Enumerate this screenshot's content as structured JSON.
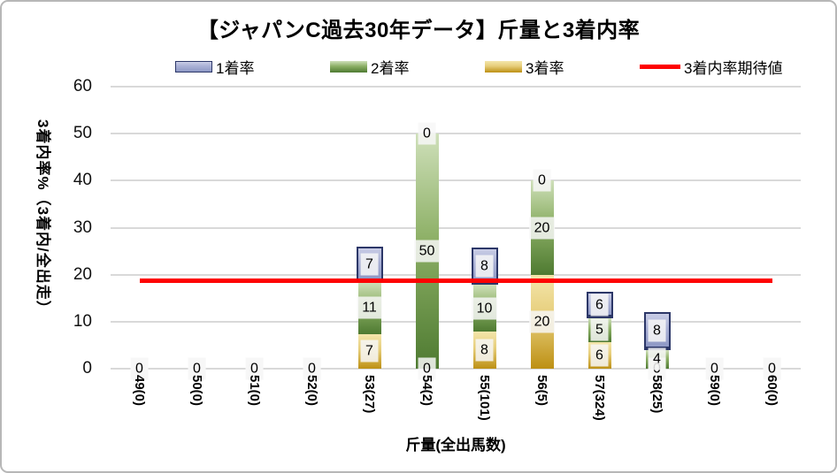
{
  "chart_data": {
    "type": "bar",
    "stacked": true,
    "title": "【ジャパンC過去30年データ】斤量と3着内率",
    "xlabel": "斤量(全出馬数)",
    "ylabel": "3着内率%（3着内/全出走）",
    "ylim": [
      0,
      60
    ],
    "yticks": [
      0,
      10,
      20,
      30,
      40,
      50,
      60
    ],
    "grid": "horizontal",
    "legend_position": "top",
    "categories": [
      "49(0)",
      "50(0)",
      "51(0)",
      "52(0)",
      "53(27)",
      "54(2)",
      "55(101)",
      "56(5)",
      "57(324)",
      "58(25)",
      "59(0)",
      "60(0)"
    ],
    "series": [
      {
        "name": "3着率",
        "stack_position": "bottom",
        "values": [
          0,
          0,
          0,
          0,
          7.4,
          0,
          7.9,
          20,
          5.6,
          0,
          0,
          0
        ],
        "labels": [
          "0",
          "0",
          "0",
          "0",
          "7",
          "0",
          "8",
          "20",
          "6",
          "0",
          "0",
          "0"
        ],
        "gradient": [
          "#f4e6ac",
          "#e6cd79",
          "#bd9014"
        ],
        "border": null
      },
      {
        "name": "2着率",
        "stack_position": "middle",
        "values": [
          0,
          0,
          0,
          0,
          11.1,
          50,
          9.9,
          20,
          5.2,
          4,
          0,
          0
        ],
        "labels": [
          "0",
          "0",
          "0",
          "0",
          "11",
          "50",
          "10",
          "20",
          "5",
          "4",
          "0",
          "0"
        ],
        "gradient": [
          "#cfe0ba",
          "#8db066",
          "#4e7a31"
        ],
        "border": null
      },
      {
        "name": "1着率",
        "stack_position": "top",
        "values": [
          0,
          0,
          0,
          0,
          7.4,
          0,
          7.9,
          0,
          5.6,
          8,
          0,
          0
        ],
        "labels": [
          "0",
          "0",
          "0",
          "0",
          "7",
          "0",
          "8",
          "0",
          "6",
          "8",
          "0",
          "0"
        ],
        "gradient": [
          "#c9cde6",
          "#a9b0d5",
          "#8e98c5"
        ],
        "border": "#2c3768"
      }
    ],
    "expected_line": {
      "name": "3着内率期待値",
      "value": 18.8,
      "color": "#fe0000"
    },
    "legend": {
      "items": [
        {
          "label": "1着率",
          "swatch": "bar",
          "series_ref": "1着率"
        },
        {
          "label": "2着率",
          "swatch": "bar",
          "series_ref": "2着率"
        },
        {
          "label": "3着率",
          "swatch": "bar",
          "series_ref": "3着率"
        },
        {
          "label": "3着内率期待値",
          "swatch": "line",
          "series_ref": null
        }
      ]
    },
    "colors": {
      "gridline": "#d9d9d9",
      "text": "#000000"
    }
  }
}
